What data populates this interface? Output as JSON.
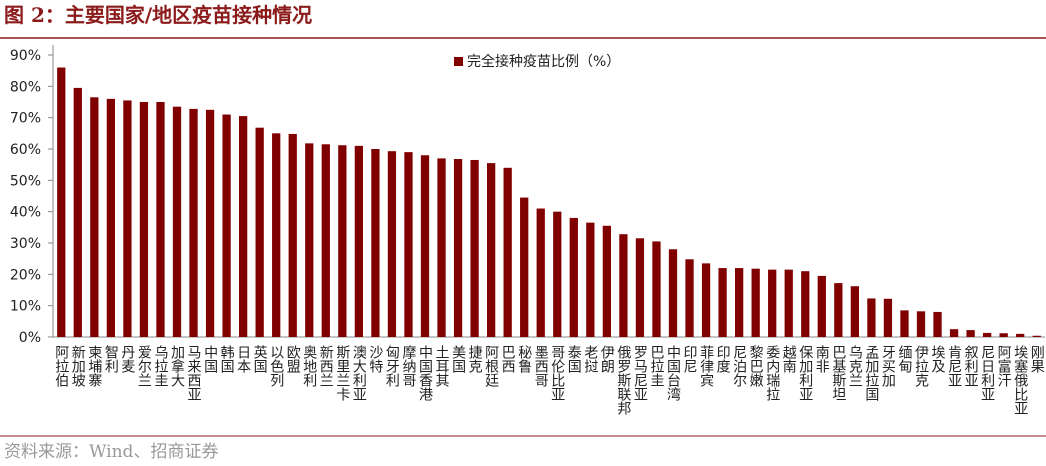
{
  "chart_data": {
    "type": "bar",
    "title": "图 2：主要国家/地区疫苗接种情况",
    "source": "资料来源：Wind、招商证券",
    "legend_label": "完全接种疫苗比例（%）",
    "color": "#800000",
    "categories": [
      "阿拉伯",
      "新加坡",
      "柬埔寨",
      "智利",
      "丹麦",
      "爱尔兰",
      "乌拉圭",
      "加拿大",
      "马来西亚",
      "中国",
      "韩国",
      "日本",
      "英国",
      "以色列",
      "欧盟",
      "奥地利",
      "新西兰",
      "斯里兰卡",
      "澳大利亚",
      "沙特",
      "匈牙利",
      "摩纳哥",
      "中国香港",
      "土耳其",
      "美国",
      "捷克",
      "阿根廷",
      "巴西",
      "秘鲁",
      "墨西哥",
      "哥伦比亚",
      "泰国",
      "老挝",
      "伊朗",
      "俄罗斯联邦",
      "罗马尼亚",
      "巴拉圭",
      "中国台湾",
      "印尼",
      "菲律宾",
      "印度",
      "尼泊尔",
      "黎巴嫩",
      "委内瑞拉",
      "越南",
      "保加利亚",
      "南非",
      "巴基斯坦",
      "乌克兰",
      "孟加拉国",
      "牙买加",
      "缅甸",
      "伊拉克",
      "埃及",
      "肯尼亚",
      "叙利亚",
      "尼日利亚",
      "阿富汗",
      "埃塞俄比亚",
      "刚果"
    ],
    "values": [
      86,
      79.5,
      76.5,
      76,
      75.5,
      75,
      75,
      73.5,
      72.8,
      72.5,
      71,
      70.5,
      66.8,
      65,
      64.8,
      61.8,
      61.5,
      61.2,
      61,
      60,
      59.3,
      59,
      58,
      57,
      56.8,
      56.5,
      55.5,
      54,
      44.5,
      41,
      40,
      38,
      36.5,
      35.5,
      32.8,
      31.5,
      30.5,
      28,
      24.8,
      23.5,
      22,
      22,
      21.8,
      21.5,
      21.5,
      21,
      19.5,
      17.2,
      16.2,
      12.3,
      12.2,
      8.5,
      8.2,
      8,
      2.5,
      2.2,
      1.3,
      1.2,
      1,
      0.4
    ],
    "ylim": [
      0,
      90
    ],
    "yticks": [
      {
        "value": 0,
        "label": "0%"
      },
      {
        "value": 10,
        "label": "10%"
      },
      {
        "value": 20,
        "label": "20%"
      },
      {
        "value": 30,
        "label": "30%"
      },
      {
        "value": 40,
        "label": "40%"
      },
      {
        "value": 50,
        "label": "50%"
      },
      {
        "value": 60,
        "label": "60%"
      },
      {
        "value": 70,
        "label": "70%"
      },
      {
        "value": 80,
        "label": "80%"
      },
      {
        "value": 90,
        "label": "90%"
      }
    ]
  }
}
